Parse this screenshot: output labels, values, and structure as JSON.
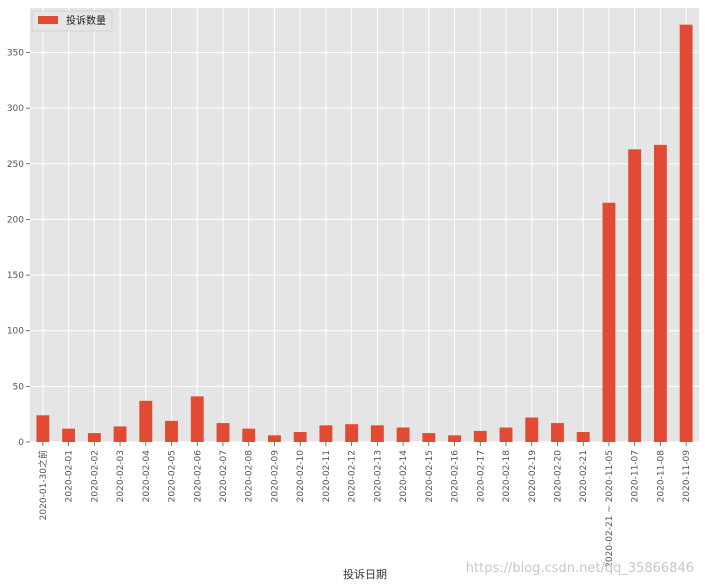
{
  "chart_data": {
    "type": "bar",
    "categories": [
      "2020-01-30之前",
      "2020-02-01",
      "2020-02-02",
      "2020-02-03",
      "2020-02-04",
      "2020-02-05",
      "2020-02-06",
      "2020-02-07",
      "2020-02-08",
      "2020-02-09",
      "2020-02-10",
      "2020-02-11",
      "2020-02-12",
      "2020-02-13",
      "2020-02-14",
      "2020-02-15",
      "2020-02-16",
      "2020-02-17",
      "2020-02-18",
      "2020-02-19",
      "2020-02-20",
      "2020-02-21",
      "2020-02-21 ~ 2020-11-05",
      "2020-11-07",
      "2020-11-08",
      "2020-11-09"
    ],
    "series": [
      {
        "name": "投诉数量",
        "color": "#e24a33",
        "values": [
          24,
          12,
          8,
          14,
          37,
          19,
          41,
          17,
          12,
          6,
          9,
          15,
          16,
          15,
          13,
          8,
          6,
          10,
          13,
          22,
          17,
          9,
          215,
          263,
          267,
          375
        ]
      }
    ],
    "xlabel": "投诉日期",
    "ylabel": "",
    "ylim": [
      0,
      390
    ],
    "yticks": [
      0,
      50,
      100,
      150,
      200,
      250,
      300,
      350
    ],
    "grid": true,
    "legend": "top-left",
    "background": "#e5e5e5",
    "grid_color": "#ffffff"
  },
  "watermark": "https://blog.csdn.net/qq_35866846"
}
